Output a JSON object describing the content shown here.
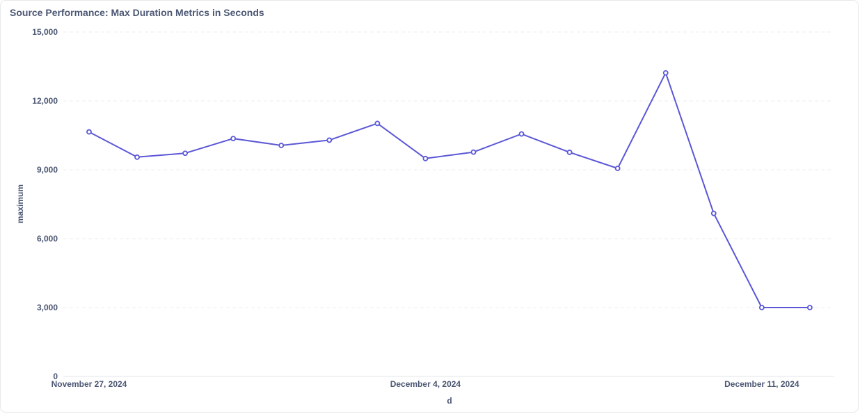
{
  "chart_data": {
    "type": "line",
    "title": "Source Performance: Max Duration Metrics in Seconds",
    "xlabel": "d",
    "ylabel": "maximum",
    "ylim": [
      0,
      15000
    ],
    "yticks": [
      "0",
      "3,000",
      "6,000",
      "9,000",
      "12,000",
      "15,000"
    ],
    "ytick_values": [
      0,
      3000,
      6000,
      9000,
      12000,
      15000
    ],
    "xticks": [
      {
        "date": "2024-11-27",
        "label": "November 27, 2024"
      },
      {
        "date": "2024-12-04",
        "label": "December 4, 2024"
      },
      {
        "date": "2024-12-11",
        "label": "December 11, 2024"
      }
    ],
    "x": [
      "2024-11-27",
      "2024-11-28",
      "2024-11-29",
      "2024-11-30",
      "2024-12-01",
      "2024-12-02",
      "2024-12-03",
      "2024-12-04",
      "2024-12-05",
      "2024-12-06",
      "2024-12-07",
      "2024-12-08",
      "2024-12-09",
      "2024-12-10",
      "2024-12-11",
      "2024-12-12"
    ],
    "series": [
      {
        "values": [
          10650,
          9550,
          9720,
          10360,
          10060,
          10290,
          11020,
          9490,
          9770,
          10560,
          9760,
          9060,
          13220,
          7100,
          3000,
          3000
        ]
      }
    ],
    "grid": true,
    "line_color": "#5b57d6"
  }
}
